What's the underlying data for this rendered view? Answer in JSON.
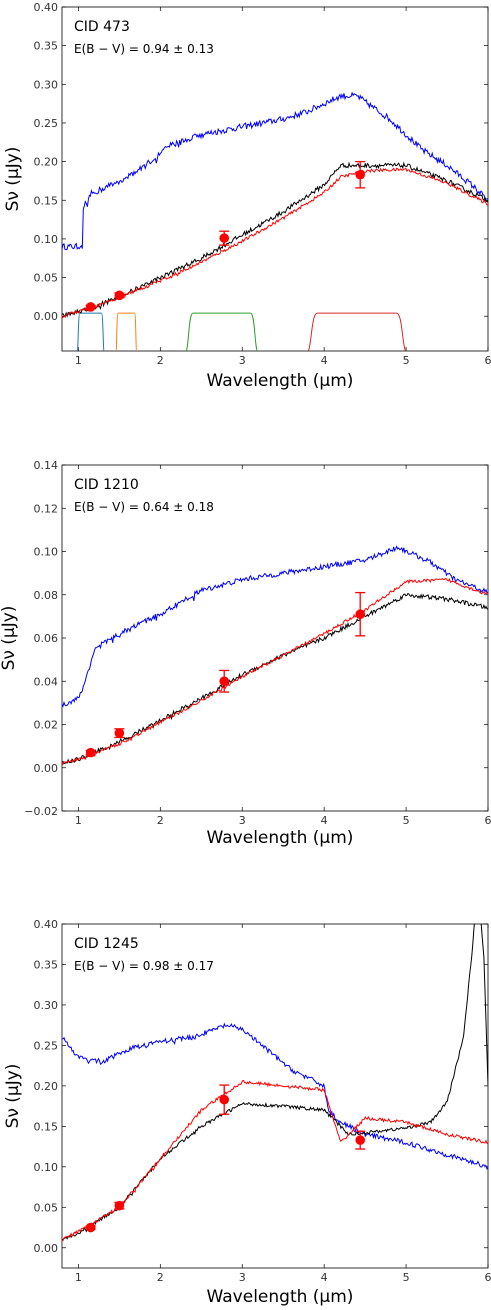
{
  "chart_data": [
    {
      "type": "line",
      "title": "CID 473",
      "annotation": "E(B − V) = 0.94 ± 0.13",
      "xlabel": "Wavelength (μm)",
      "ylabel": "Sν (μJy)",
      "xlim": [
        0.8,
        6
      ],
      "ylim": [
        -0.045,
        0.4
      ],
      "xticks": [
        1,
        2,
        3,
        4,
        5,
        6
      ],
      "yticks": [
        0.0,
        0.05,
        0.1,
        0.15,
        0.2,
        0.25,
        0.3,
        0.35,
        0.4
      ],
      "ytick_labels": [
        "0.00",
        "0.05",
        "0.10",
        "0.15",
        "0.20",
        "0.25",
        "0.30",
        "0.35",
        "0.40"
      ],
      "colors": {
        "blue_model": "#0000ff",
        "black_model": "#000000",
        "red_model": "#ff0000",
        "points": "#ff0000"
      },
      "series": [
        {
          "color": "#0000ff",
          "noise": 0.004,
          "x": [
            0.9,
            1.0,
            1.05,
            1.06,
            1.15,
            1.3,
            1.5,
            1.75,
            2.0,
            2.1,
            2.5,
            3.0,
            3.5,
            3.8,
            4.0,
            4.2,
            4.4,
            4.6,
            4.8,
            5.0,
            5.2,
            5.5,
            5.8,
            6.0
          ],
          "y": [
            0.09,
            0.09,
            0.095,
            0.14,
            0.158,
            0.165,
            0.175,
            0.19,
            0.21,
            0.22,
            0.235,
            0.245,
            0.255,
            0.265,
            0.275,
            0.285,
            0.285,
            0.27,
            0.255,
            0.235,
            0.215,
            0.195,
            0.17,
            0.15
          ]
        },
        {
          "color": "#000000",
          "noise": 0.003,
          "x": [
            0.8,
            1.0,
            1.2,
            1.5,
            2.0,
            2.5,
            3.0,
            3.5,
            4.0,
            4.2,
            4.5,
            5.0,
            5.5,
            6.0
          ],
          "y": [
            0.0,
            0.006,
            0.012,
            0.025,
            0.05,
            0.075,
            0.105,
            0.135,
            0.17,
            0.195,
            0.195,
            0.195,
            0.175,
            0.15
          ]
        },
        {
          "color": "#ff0000",
          "noise": 0.002,
          "x": [
            0.8,
            1.0,
            1.2,
            1.5,
            2.0,
            2.5,
            3.0,
            3.5,
            4.0,
            4.2,
            4.5,
            5.0,
            5.5,
            6.0
          ],
          "y": [
            0.0,
            0.006,
            0.012,
            0.024,
            0.046,
            0.07,
            0.097,
            0.127,
            0.16,
            0.18,
            0.188,
            0.19,
            0.172,
            0.145
          ]
        }
      ],
      "points": [
        {
          "x": 1.15,
          "y": 0.012,
          "err": 0.002
        },
        {
          "x": 1.5,
          "y": 0.027,
          "err": 0.003
        },
        {
          "x": 2.78,
          "y": 0.101,
          "err": 0.009
        },
        {
          "x": 4.44,
          "y": 0.183,
          "err": 0.017
        }
      ],
      "filters": [
        {
          "color": "#1f77b4",
          "range": [
            1.0,
            1.3
          ]
        },
        {
          "color": "#ff7f0e",
          "range": [
            1.47,
            1.7
          ]
        },
        {
          "color": "#2ca02c",
          "range": [
            2.35,
            3.15
          ]
        },
        {
          "color": "#d62728",
          "range": [
            3.85,
            4.95
          ]
        }
      ]
    },
    {
      "type": "line",
      "title": "CID 1210",
      "annotation": "E(B − V) = 0.64 ± 0.18",
      "xlabel": "Wavelength (μm)",
      "ylabel": "Sν (μJy)",
      "xlim": [
        0.8,
        6
      ],
      "ylim": [
        -0.02,
        0.14
      ],
      "xticks": [
        1,
        2,
        3,
        4,
        5,
        6
      ],
      "yticks": [
        -0.02,
        0.0,
        0.02,
        0.04,
        0.06,
        0.08,
        0.1,
        0.12,
        0.14
      ],
      "ytick_labels": [
        "−0.02",
        "0.00",
        "0.02",
        "0.04",
        "0.06",
        "0.08",
        "0.10",
        "0.12",
        "0.14"
      ],
      "colors": {
        "blue_model": "#0000ff",
        "black_model": "#000000",
        "red_model": "#ff0000",
        "points": "#ff0000"
      },
      "series": [
        {
          "color": "#0000ff",
          "noise": 0.0012,
          "x": [
            0.8,
            1.0,
            1.05,
            1.2,
            1.5,
            2.0,
            2.5,
            3.0,
            3.5,
            4.0,
            4.5,
            4.9,
            5.3,
            5.6,
            6.0
          ],
          "y": [
            0.029,
            0.032,
            0.036,
            0.055,
            0.062,
            0.071,
            0.082,
            0.087,
            0.09,
            0.093,
            0.096,
            0.102,
            0.095,
            0.087,
            0.081
          ]
        },
        {
          "color": "#000000",
          "noise": 0.001,
          "x": [
            0.8,
            1.0,
            1.5,
            2.0,
            2.5,
            3.0,
            3.5,
            4.0,
            4.5,
            5.0,
            5.5,
            6.0
          ],
          "y": [
            0.002,
            0.004,
            0.012,
            0.022,
            0.032,
            0.043,
            0.052,
            0.06,
            0.07,
            0.08,
            0.078,
            0.074
          ]
        },
        {
          "color": "#ff0000",
          "noise": 0.0007,
          "x": [
            0.8,
            1.0,
            1.5,
            2.0,
            2.5,
            3.0,
            3.5,
            4.0,
            4.5,
            5.0,
            5.5,
            6.0
          ],
          "y": [
            0.002,
            0.004,
            0.011,
            0.021,
            0.031,
            0.042,
            0.052,
            0.062,
            0.073,
            0.086,
            0.087,
            0.08
          ]
        }
      ],
      "points": [
        {
          "x": 1.15,
          "y": 0.007,
          "err": 0.001
        },
        {
          "x": 1.5,
          "y": 0.016,
          "err": 0.002
        },
        {
          "x": 2.78,
          "y": 0.04,
          "err": 0.005
        },
        {
          "x": 4.44,
          "y": 0.071,
          "err": 0.01
        }
      ],
      "filters": []
    },
    {
      "type": "line",
      "title": "CID 1245",
      "annotation": "E(B − V) = 0.98 ± 0.17",
      "xlabel": "Wavelength (μm)",
      "ylabel": "Sν (μJy)",
      "xlim": [
        0.8,
        6
      ],
      "ylim": [
        -0.025,
        0.4
      ],
      "xticks": [
        1,
        2,
        3,
        4,
        5,
        6
      ],
      "yticks": [
        0.0,
        0.05,
        0.1,
        0.15,
        0.2,
        0.25,
        0.3,
        0.35,
        0.4
      ],
      "ytick_labels": [
        "0.00",
        "0.05",
        "0.10",
        "0.15",
        "0.20",
        "0.25",
        "0.30",
        "0.35",
        "0.40"
      ],
      "colors": {
        "blue_model": "#0000ff",
        "black_model": "#000000",
        "red_model": "#ff0000",
        "points": "#ff0000"
      },
      "series": [
        {
          "color": "#0000ff",
          "noise": 0.003,
          "x": [
            0.8,
            1.0,
            1.3,
            1.6,
            2.0,
            2.4,
            2.8,
            3.0,
            3.3,
            3.6,
            4.0,
            4.05,
            4.2,
            4.5,
            5.0,
            5.5,
            6.0
          ],
          "y": [
            0.26,
            0.235,
            0.23,
            0.245,
            0.255,
            0.26,
            0.275,
            0.27,
            0.245,
            0.22,
            0.2,
            0.17,
            0.155,
            0.14,
            0.13,
            0.115,
            0.1
          ]
        },
        {
          "color": "#000000",
          "noise": 0.002,
          "x": [
            0.8,
            1.0,
            1.5,
            2.0,
            2.5,
            3.0,
            3.5,
            4.0,
            4.1,
            4.3,
            4.5,
            5.0,
            5.3,
            5.5,
            5.7,
            5.8,
            5.85,
            5.9,
            5.95,
            6.0
          ],
          "y": [
            0.01,
            0.018,
            0.05,
            0.11,
            0.15,
            0.178,
            0.175,
            0.17,
            0.16,
            0.14,
            0.142,
            0.148,
            0.155,
            0.18,
            0.26,
            0.36,
            0.42,
            0.42,
            0.36,
            0.2
          ]
        },
        {
          "color": "#ff0000",
          "noise": 0.002,
          "x": [
            0.8,
            1.0,
            1.5,
            2.0,
            2.5,
            3.0,
            3.5,
            4.0,
            4.2,
            4.5,
            5.0,
            5.5,
            6.0
          ],
          "y": [
            0.01,
            0.02,
            0.05,
            0.11,
            0.17,
            0.205,
            0.2,
            0.195,
            0.13,
            0.16,
            0.155,
            0.14,
            0.13
          ]
        }
      ],
      "points": [
        {
          "x": 1.15,
          "y": 0.025,
          "err": 0.002
        },
        {
          "x": 1.5,
          "y": 0.052,
          "err": 0.004
        },
        {
          "x": 2.78,
          "y": 0.183,
          "err": 0.018
        },
        {
          "x": 4.44,
          "y": 0.133,
          "err": 0.011
        }
      ],
      "filters": []
    }
  ]
}
